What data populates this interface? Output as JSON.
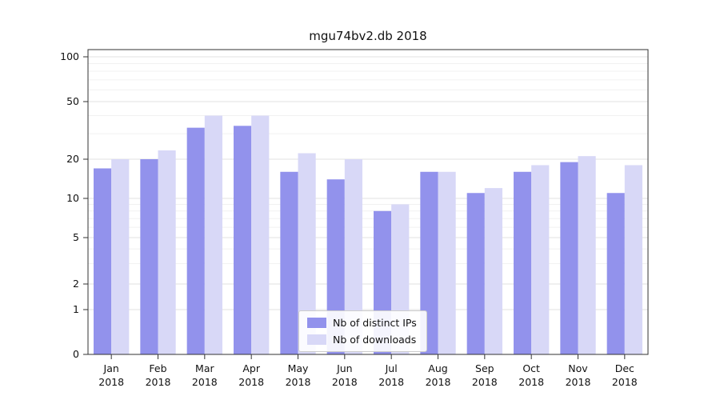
{
  "chart_data": {
    "type": "bar",
    "title": "mgu74bv2.db 2018",
    "categories": [
      "Jan",
      "Feb",
      "Mar",
      "Apr",
      "May",
      "Jun",
      "Jul",
      "Aug",
      "Sep",
      "Oct",
      "Nov",
      "Dec"
    ],
    "xlabel_year": "2018",
    "yticks": [
      0,
      1,
      2,
      5,
      10,
      20,
      50,
      100
    ],
    "yscale": "symlog",
    "ylim": [
      0,
      110
    ],
    "grid": true,
    "legend_position": "lower center",
    "series": [
      {
        "name": "Nb of distinct IPs",
        "color": "#9292ec",
        "values": [
          17,
          20,
          33,
          34,
          16,
          14,
          8,
          16,
          11,
          16,
          19,
          11
        ]
      },
      {
        "name": "Nb of downloads",
        "color": "#d8d8f7",
        "values": [
          20,
          23,
          40,
          40,
          22,
          20,
          9,
          16,
          12,
          18,
          21,
          18
        ]
      }
    ]
  }
}
